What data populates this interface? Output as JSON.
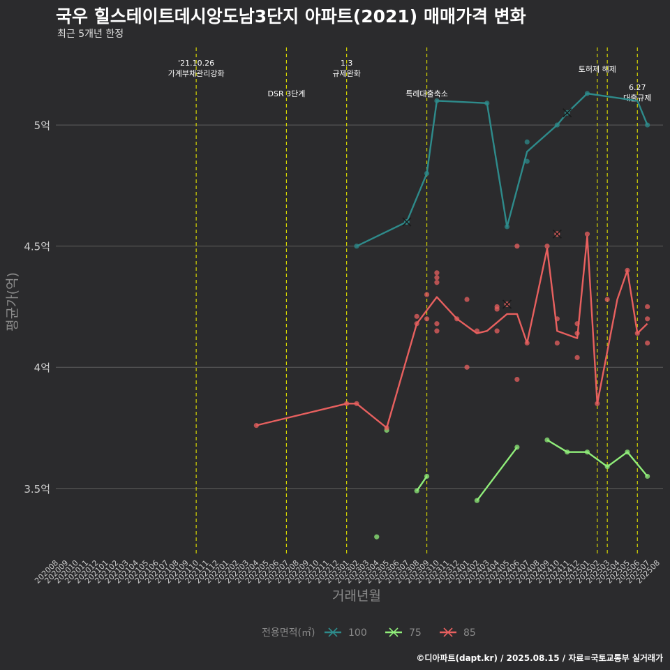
{
  "title": "국우 힐스테이트데시앙도남3단지 아파트(2021) 매매가격 변화",
  "subtitle": "최근 5개년 한정",
  "footer": "©디아파트(dapt.kr) / 2025.08.15 / 자료=국토교통부 실거래가",
  "colors": {
    "background": "#2b2b2d",
    "grid": "#5f5f5f",
    "event_line": "#d6d600",
    "axis_text": "#cccccc",
    "series_100": "#2e8b8b",
    "series_75": "#90ee7a",
    "series_85": "#e8605f"
  },
  "chart_data": {
    "type": "line",
    "xlabel": "거래년월",
    "ylabel": "평균가(억)",
    "legend_title": "전용면적(㎡)",
    "legend_position": "bottom",
    "x_categories": [
      "202008",
      "202009",
      "202010",
      "202011",
      "202012",
      "202101",
      "202102",
      "202103",
      "202104",
      "202105",
      "202106",
      "202107",
      "202108",
      "202109",
      "202110",
      "202111",
      "202112",
      "202201",
      "202202",
      "202203",
      "202204",
      "202205",
      "202206",
      "202207",
      "202208",
      "202209",
      "202210",
      "202211",
      "202212",
      "202301",
      "202302",
      "202303",
      "202304",
      "202305",
      "202306",
      "202307",
      "202308",
      "202309",
      "202310",
      "202311",
      "202312",
      "202401",
      "202402",
      "202403",
      "202404",
      "202405",
      "202406",
      "202407",
      "202408",
      "202409",
      "202410",
      "202411",
      "202412",
      "202501",
      "202502",
      "202503",
      "202504",
      "202505",
      "202506",
      "202507",
      "202508"
    ],
    "y_ticks": [
      3.5,
      4,
      4.5,
      5
    ],
    "y_tick_labels": [
      "3.5억",
      "4억",
      "4.5억",
      "5억"
    ],
    "ylim": [
      3.22,
      5.32
    ],
    "grid": true,
    "events": [
      {
        "x": "202110",
        "label": "'21.10.26\n가계부채관리강화",
        "row": 1
      },
      {
        "x": "202207",
        "label": "DSR 3단계",
        "row": 3
      },
      {
        "x": "202301",
        "label": "1.3\n규제완화",
        "row": 1
      },
      {
        "x": "202309",
        "label": "특례대출축소",
        "row": 3
      },
      {
        "x": "202502",
        "label": "토허제 해제",
        "row": 2
      },
      {
        "x": "202503",
        "label": "",
        "row": 2
      },
      {
        "x": "202506",
        "label": "6.27\n대출규제",
        "row": 4
      }
    ],
    "series": [
      {
        "name": "100",
        "line": [
          [
            "202302",
            4.5
          ],
          [
            "202307",
            4.6
          ],
          [
            "202309",
            4.8
          ],
          [
            "202310",
            5.1
          ],
          [
            "202403",
            5.09
          ],
          [
            "202405",
            4.58
          ],
          [
            "202407",
            4.89
          ],
          [
            "202410",
            5.0
          ],
          [
            "202411",
            5.05
          ],
          [
            "202501",
            5.13
          ],
          [
            "202506",
            5.1
          ],
          [
            "202507",
            5.0
          ]
        ],
        "points": [
          [
            "202302",
            4.5
          ],
          [
            "202307",
            4.6
          ],
          [
            "202309",
            4.8
          ],
          [
            "202310",
            5.1
          ],
          [
            "202403",
            5.09
          ],
          [
            "202405",
            4.58
          ],
          [
            "202407",
            4.93
          ],
          [
            "202407",
            4.85
          ],
          [
            "202410",
            5.0
          ],
          [
            "202501",
            5.13
          ],
          [
            "202507",
            5.0
          ]
        ],
        "crosses": [
          [
            "202307",
            4.6
          ],
          [
            "202411",
            5.05
          ]
        ]
      },
      {
        "name": "75",
        "line_segments": [
          [
            [
              "202308",
              3.49
            ],
            [
              "202309",
              3.55
            ]
          ],
          [
            [
              "202402",
              3.45
            ],
            [
              "202406",
              3.67
            ]
          ],
          [
            [
              "202409",
              3.7
            ],
            [
              "202411",
              3.65
            ],
            [
              "202501",
              3.65
            ],
            [
              "202503",
              3.59
            ],
            [
              "202505",
              3.65
            ],
            [
              "202507",
              3.55
            ]
          ]
        ],
        "points": [
          [
            "202304",
            3.3
          ],
          [
            "202305",
            3.74
          ],
          [
            "202308",
            3.49
          ],
          [
            "202309",
            3.55
          ],
          [
            "202402",
            3.45
          ],
          [
            "202406",
            3.67
          ],
          [
            "202409",
            3.7
          ],
          [
            "202411",
            3.65
          ],
          [
            "202501",
            3.65
          ],
          [
            "202503",
            3.59
          ],
          [
            "202505",
            3.65
          ],
          [
            "202507",
            3.55
          ]
        ],
        "crosses": []
      },
      {
        "name": "85",
        "line": [
          [
            "202204",
            3.76
          ],
          [
            "202301",
            3.85
          ],
          [
            "202302",
            3.85
          ],
          [
            "202305",
            3.75
          ],
          [
            "202308",
            4.18
          ],
          [
            "202310",
            4.29
          ],
          [
            "202312",
            4.2
          ],
          [
            "202402",
            4.14
          ],
          [
            "202403",
            4.15
          ],
          [
            "202405",
            4.22
          ],
          [
            "202406",
            4.22
          ],
          [
            "202407",
            4.1
          ],
          [
            "202409",
            4.49
          ],
          [
            "202410",
            4.15
          ],
          [
            "202412",
            4.12
          ],
          [
            "202501",
            4.54
          ],
          [
            "202502",
            3.85
          ],
          [
            "202504",
            4.28
          ],
          [
            "202505",
            4.4
          ],
          [
            "202506",
            4.14
          ],
          [
            "202507",
            4.18
          ]
        ],
        "points": [
          [
            "202204",
            3.76
          ],
          [
            "202301",
            3.85
          ],
          [
            "202302",
            3.85
          ],
          [
            "202305",
            3.75
          ],
          [
            "202308",
            4.21
          ],
          [
            "202308",
            4.18
          ],
          [
            "202309",
            4.3
          ],
          [
            "202309",
            4.2
          ],
          [
            "202310",
            4.39
          ],
          [
            "202310",
            4.37
          ],
          [
            "202310",
            4.35
          ],
          [
            "202310",
            4.18
          ],
          [
            "202310",
            4.15
          ],
          [
            "202312",
            4.2
          ],
          [
            "202401",
            4.28
          ],
          [
            "202401",
            4.0
          ],
          [
            "202402",
            4.15
          ],
          [
            "202404",
            4.25
          ],
          [
            "202404",
            4.24
          ],
          [
            "202404",
            4.15
          ],
          [
            "202406",
            4.5
          ],
          [
            "202406",
            3.95
          ],
          [
            "202407",
            4.1
          ],
          [
            "202409",
            4.5
          ],
          [
            "202410",
            4.2
          ],
          [
            "202410",
            4.1
          ],
          [
            "202412",
            4.18
          ],
          [
            "202412",
            4.14
          ],
          [
            "202412",
            4.04
          ],
          [
            "202501",
            4.55
          ],
          [
            "202502",
            3.85
          ],
          [
            "202503",
            4.28
          ],
          [
            "202505",
            4.4
          ],
          [
            "202506",
            4.14
          ],
          [
            "202507",
            4.25
          ],
          [
            "202507",
            4.2
          ],
          [
            "202507",
            4.1
          ]
        ],
        "crosses": [
          [
            "202405",
            4.26
          ],
          [
            "202410",
            4.55
          ]
        ]
      }
    ]
  }
}
